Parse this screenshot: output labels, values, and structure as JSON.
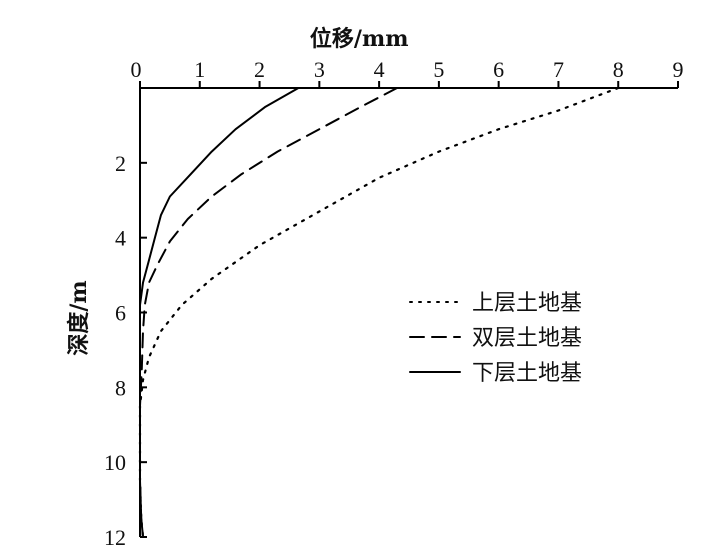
{
  "chart_data": {
    "type": "line",
    "xlabel": "位移/mm",
    "ylabel": "深度/m",
    "x_axis_position": "top",
    "y_inverted": true,
    "xlim": [
      0,
      9
    ],
    "ylim": [
      0,
      12
    ],
    "x_ticks": [
      "0",
      "1",
      "2",
      "3",
      "4",
      "5",
      "6",
      "7",
      "8",
      "9"
    ],
    "y_ticks": [
      "2",
      "4",
      "6",
      "8",
      "10",
      "12"
    ],
    "grid": false,
    "legend_position": "middle-right",
    "series": [
      {
        "name": "上层土地基",
        "style": "dotted",
        "points": [
          [
            8.0,
            0
          ],
          [
            7.0,
            0.6
          ],
          [
            6.0,
            1.1
          ],
          [
            5.0,
            1.7
          ],
          [
            4.0,
            2.4
          ],
          [
            3.0,
            3.3
          ],
          [
            2.0,
            4.2
          ],
          [
            1.2,
            5.1
          ],
          [
            0.7,
            5.8
          ],
          [
            0.35,
            6.5
          ],
          [
            0.15,
            7.2
          ],
          [
            0.05,
            7.8
          ],
          [
            0.0,
            8.5
          ],
          [
            0.0,
            9.5
          ],
          [
            0.0,
            10.5
          ],
          [
            0.02,
            11.5
          ],
          [
            0.05,
            12.0
          ]
        ]
      },
      {
        "name": "双层土地基",
        "style": "dashed",
        "points": [
          [
            4.3,
            0
          ],
          [
            3.7,
            0.5
          ],
          [
            3.0,
            1.1
          ],
          [
            2.3,
            1.7
          ],
          [
            1.7,
            2.3
          ],
          [
            1.2,
            2.9
          ],
          [
            0.8,
            3.5
          ],
          [
            0.5,
            4.1
          ],
          [
            0.3,
            4.7
          ],
          [
            0.15,
            5.2
          ],
          [
            0.08,
            5.8
          ],
          [
            0.05,
            6.5
          ],
          [
            0.03,
            7.5
          ],
          [
            0.0,
            8.5
          ],
          [
            0.0,
            9.5
          ],
          [
            0.0,
            10.5
          ],
          [
            0.02,
            11.5
          ],
          [
            0.05,
            12.0
          ]
        ]
      },
      {
        "name": "下层土地基",
        "style": "solid",
        "points": [
          [
            2.65,
            0
          ],
          [
            2.1,
            0.5
          ],
          [
            1.6,
            1.1
          ],
          [
            1.2,
            1.7
          ],
          [
            0.85,
            2.3
          ],
          [
            0.5,
            2.9
          ],
          [
            0.35,
            3.4
          ],
          [
            0.25,
            4.0
          ],
          [
            0.15,
            4.6
          ],
          [
            0.05,
            5.2
          ],
          [
            0.0,
            5.8
          ],
          [
            0.0,
            6.5
          ],
          [
            0.0,
            7.5
          ],
          [
            0.0,
            8.5
          ],
          [
            0.0,
            9.5
          ],
          [
            0.0,
            10.5
          ],
          [
            0.02,
            11.5
          ],
          [
            0.05,
            12.0
          ]
        ]
      }
    ]
  }
}
